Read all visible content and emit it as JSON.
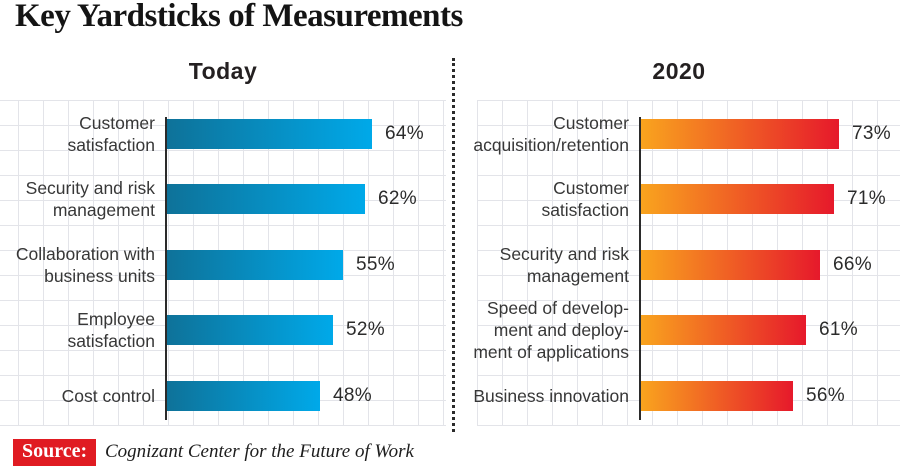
{
  "title": "Key Yardsticks of Measurements",
  "source": {
    "badge": "Source:",
    "text": "Cognizant Center for the Future of Work"
  },
  "colors": {
    "blue_gradient_start": "#0e7299",
    "blue_gradient_end": "#00a9e9",
    "orange_gradient_start": "#f9a41e",
    "orange_gradient_end": "#e6192b",
    "source_badge_bg": "#e01b22",
    "grid_line": "#e3e4e9",
    "axis_line": "#2b2b2b",
    "heading_text": "#242021",
    "label_text": "#373737"
  },
  "chart_data": [
    {
      "type": "bar",
      "orientation": "horizontal",
      "title": "Today",
      "unit": "%",
      "categories": [
        "Customer satisfaction",
        "Security and risk management",
        "Collaboration with business units",
        "Employee satisfaction",
        "Cost control"
      ],
      "category_display_lines": [
        [
          "Customer",
          "satisfaction"
        ],
        [
          "Security and risk",
          "management"
        ],
        [
          "Collaboration with",
          "business units"
        ],
        [
          "Employee",
          "satisfaction"
        ],
        [
          "Cost control"
        ]
      ],
      "values": [
        64,
        62,
        55,
        52,
        48
      ],
      "value_labels": [
        "64%",
        "62%",
        "55%",
        "52%",
        "48%"
      ],
      "xlim": [
        0,
        87
      ],
      "grid": true,
      "legend": false,
      "bar_gradient": [
        "#0e7299",
        "#00a9e9"
      ]
    },
    {
      "type": "bar",
      "orientation": "horizontal",
      "title": "2020",
      "unit": "%",
      "categories": [
        "Customer acquisition/retention",
        "Customer satisfaction",
        "Security and risk management",
        "Speed of development and deployment of applications",
        "Business innovation"
      ],
      "category_display_lines": [
        [
          "Customer",
          "acquisition/retention"
        ],
        [
          "Customer",
          "satisfaction"
        ],
        [
          "Security and risk",
          "management"
        ],
        [
          "Speed of develop-",
          "ment and deploy-",
          "ment of applications"
        ],
        [
          "Business innovation"
        ]
      ],
      "values": [
        73,
        71,
        66,
        61,
        56
      ],
      "value_labels": [
        "73%",
        "71%",
        "66%",
        "61%",
        "56%"
      ],
      "xlim": [
        0,
        94
      ],
      "grid": true,
      "legend": false,
      "bar_gradient": [
        "#f9a41e",
        "#e6192b"
      ]
    }
  ]
}
